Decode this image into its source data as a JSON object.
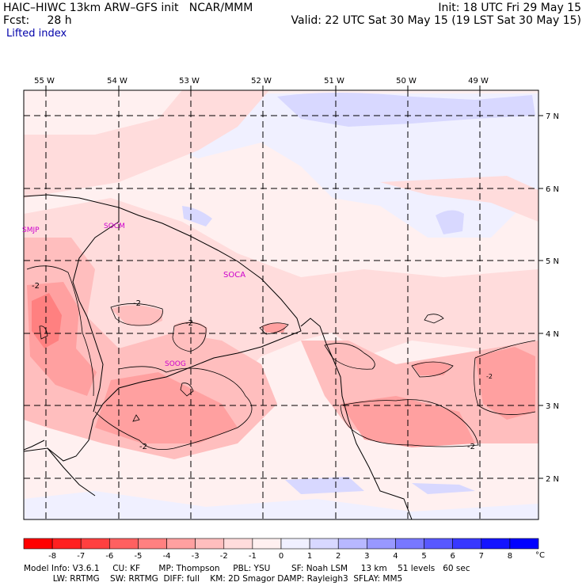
{
  "header": {
    "left_line1": "HAIC–HIWC 13km ARW–GFS init   NCAR/MMM",
    "left_line2": "Fcst:     28 h",
    "right_line1": "Init: 18 UTC Fri 29 May 15",
    "right_line2": "Valid: 22 UTC Sat 30 May 15 (19 LST Sat 30 May 15)",
    "field": "Lifted index"
  },
  "map": {
    "lon_labels": [
      "55 W",
      "54 W",
      "53 W",
      "52 W",
      "51 W",
      "50 W",
      "49 W"
    ],
    "lat_labels": [
      "7 N",
      "6 N",
      "5 N",
      "4 N",
      "3 N",
      "2 N"
    ],
    "stations": [
      "SMJP",
      "SOCM",
      "SOCA",
      "SOOG"
    ],
    "contour_labels": [
      "-2",
      "-2",
      "-2",
      "-2",
      "-2",
      "-2"
    ]
  },
  "colorbar": {
    "tick_labels": [
      "-8",
      "-7",
      "-6",
      "-5",
      "-4",
      "-3",
      "-2",
      "-1",
      "0",
      "1",
      "2",
      "3",
      "4",
      "5",
      "6",
      "7",
      "8"
    ],
    "unit": "°C",
    "colors": [
      "#ff0000",
      "#ff2020",
      "#ff4040",
      "#ff6060",
      "#ff8080",
      "#ffa0a0",
      "#ffbebe",
      "#ffdcdc",
      "#fff0f0",
      "#f0f0ff",
      "#d8d8ff",
      "#b8b8ff",
      "#9898ff",
      "#7878ff",
      "#5858ff",
      "#3838ff",
      "#1414ff",
      "#0000ff"
    ]
  },
  "footer": {
    "line1": "Model Info: V3.6.1     CU: KF       MP: Thompson     PBL: YSU        SF: Noah LSM     13 km    51 levels   60 sec",
    "line2": "           LW: RRTMG    SW: RRTMG  DIFF: full    KM: 2D Smagor DAMP: Rayleigh3  SFLAY: MM5"
  }
}
